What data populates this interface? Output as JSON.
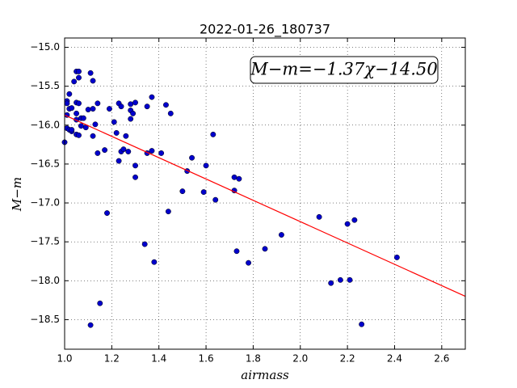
{
  "chart_data": {
    "type": "scatter",
    "title": "2022-01-26_180737",
    "x_label": "airmass",
    "y_label": "M−m",
    "annotation": "M−m=−1.37χ−14.50",
    "color": "#0000cc",
    "x": [
      1.0,
      1.01,
      1.01,
      1.01,
      1.02,
      1.02,
      1.02,
      1.03,
      1.03,
      1.03,
      1.01,
      1.04,
      1.05,
      1.06,
      1.06,
      1.05,
      1.06,
      1.05,
      1.05,
      1.05,
      1.06,
      1.07,
      1.07,
      1.08,
      1.09,
      1.1,
      1.11,
      1.12,
      1.12,
      1.12,
      1.14,
      1.13,
      1.14,
      1.17,
      1.18,
      1.19,
      1.21,
      1.22,
      1.23,
      1.24,
      1.23,
      1.24,
      1.25,
      1.26,
      1.27,
      1.28,
      1.28,
      1.29,
      1.28,
      1.3,
      1.3,
      1.3,
      1.34,
      1.35,
      1.35,
      1.37,
      1.37,
      1.38,
      1.41,
      1.43,
      1.44,
      1.45,
      1.5,
      1.52,
      1.54,
      1.59,
      1.6,
      1.63,
      1.64,
      1.72,
      1.72,
      1.74,
      1.73,
      1.78,
      1.85,
      1.92,
      2.08,
      2.13,
      2.17,
      2.2,
      2.23,
      2.21,
      2.26,
      2.41,
      1.11,
      1.15
    ],
    "values": [
      -16.22,
      -15.69,
      -15.87,
      -16.04,
      -16.06,
      -15.6,
      -15.79,
      -16.08,
      -15.78,
      -16.06,
      -15.72,
      -15.44,
      -15.31,
      -15.31,
      -15.39,
      -15.71,
      -15.72,
      -15.85,
      -15.93,
      -16.12,
      -16.13,
      -15.91,
      -16.01,
      -15.91,
      -16.03,
      -15.8,
      -15.33,
      -15.43,
      -15.79,
      -16.14,
      -15.72,
      -15.99,
      -16.36,
      -16.32,
      -17.13,
      -15.79,
      -15.96,
      -16.1,
      -15.72,
      -15.76,
      -16.46,
      -16.34,
      -16.31,
      -16.14,
      -16.34,
      -15.81,
      -15.73,
      -15.85,
      -15.92,
      -15.71,
      -16.52,
      -16.67,
      -17.53,
      -15.76,
      -16.36,
      -16.33,
      -15.64,
      -17.76,
      -16.36,
      -15.74,
      -17.11,
      -15.85,
      -16.85,
      -16.59,
      -16.42,
      -16.86,
      -16.52,
      -16.12,
      -16.96,
      -16.67,
      -16.84,
      -16.69,
      -17.62,
      -17.77,
      -17.59,
      -17.41,
      -17.18,
      -18.03,
      -17.99,
      -17.27,
      -17.22,
      -17.99,
      -18.56,
      -17.7,
      -18.57,
      -18.29
    ],
    "fit": {
      "x": [
        1.0,
        2.7
      ],
      "values": [
        -15.87,
        -18.2
      ],
      "color": "#ff0000"
    },
    "xlim": [
      1.0,
      2.7
    ],
    "ylim": [
      -18.88,
      -14.88
    ],
    "xticks": [
      {
        "value": 1.0,
        "label": "1.0"
      },
      {
        "value": 1.2,
        "label": "1.2"
      },
      {
        "value": 1.4,
        "label": "1.4"
      },
      {
        "value": 1.6,
        "label": "1.6"
      },
      {
        "value": 1.8,
        "label": "1.8"
      },
      {
        "value": 2.0,
        "label": "2.0"
      },
      {
        "value": 2.2,
        "label": "2.2"
      },
      {
        "value": 2.4,
        "label": "2.4"
      },
      {
        "value": 2.6,
        "label": "2.6"
      }
    ],
    "yticks": [
      {
        "value": -15.0,
        "label": "−15.0"
      },
      {
        "value": -15.5,
        "label": "−15.5"
      },
      {
        "value": -16.0,
        "label": "−16.0"
      },
      {
        "value": -16.5,
        "label": "−16.5"
      },
      {
        "value": -17.0,
        "label": "−17.0"
      },
      {
        "value": -17.5,
        "label": "−17.5"
      },
      {
        "value": -18.0,
        "label": "−18.0"
      },
      {
        "value": -18.5,
        "label": "−18.5"
      }
    ],
    "grid": true
  }
}
